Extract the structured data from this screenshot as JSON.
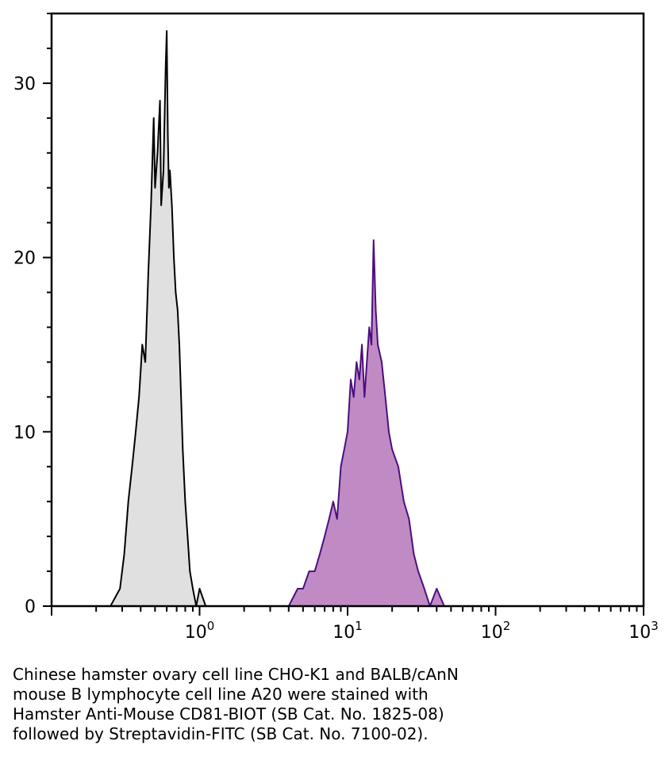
{
  "chart_data": {
    "type": "area",
    "x_scale": "log",
    "xlim": [
      0.1,
      1000
    ],
    "ylim": [
      0,
      34
    ],
    "grid": false,
    "y_ticks": [
      0,
      10,
      20,
      30
    ],
    "x_ticks": [
      {
        "value": 1,
        "base": "10",
        "exp": "0"
      },
      {
        "value": 10,
        "base": "10",
        "exp": "1"
      },
      {
        "value": 100,
        "base": "10",
        "exp": "2"
      },
      {
        "value": 1000,
        "base": "10",
        "exp": "3"
      }
    ],
    "series": [
      {
        "fill": "#e0e0e0",
        "stroke": "#000000",
        "x": [
          0.18,
          0.25,
          0.29,
          0.31,
          0.33,
          0.35,
          0.37,
          0.39,
          0.41,
          0.43,
          0.45,
          0.47,
          0.49,
          0.5,
          0.52,
          0.54,
          0.55,
          0.57,
          0.59,
          0.6,
          0.61,
          0.62,
          0.63,
          0.65,
          0.67,
          0.69,
          0.71,
          0.73,
          0.75,
          0.77,
          0.8,
          0.83,
          0.86,
          0.9,
          0.95,
          1.0,
          1.1,
          1.2,
          1.5
        ],
        "y": [
          0,
          0,
          1,
          3,
          6,
          8,
          10,
          12,
          15,
          14,
          19,
          23,
          28,
          24,
          26,
          29,
          23,
          25,
          31,
          33,
          27,
          24,
          25,
          23,
          20,
          18,
          17,
          15,
          12,
          9,
          6,
          4,
          2,
          1,
          0,
          1,
          0,
          0,
          0
        ]
      },
      {
        "fill": "#c08bc4",
        "stroke": "#4b0f7e",
        "x": [
          0.18,
          0.5,
          1.0,
          2.0,
          3.0,
          4.0,
          4.6,
          5.0,
          5.5,
          6.0,
          6.5,
          7.0,
          7.5,
          8.0,
          8.5,
          9.0,
          9.5,
          10.0,
          10.5,
          11.0,
          11.5,
          12.0,
          12.5,
          13.0,
          13.5,
          14.0,
          14.5,
          15.0,
          15.5,
          16.0,
          17.0,
          18.0,
          19.0,
          20.0,
          22.0,
          24.0,
          26.0,
          28.0,
          30.0,
          33.0,
          36.0,
          40.0,
          45.0
        ],
        "y": [
          0,
          0,
          0,
          0,
          0,
          0,
          1,
          1,
          2,
          2,
          3,
          4,
          5,
          6,
          5,
          8,
          9,
          10,
          13,
          12,
          14,
          13,
          15,
          12,
          14,
          16,
          15,
          21,
          17,
          15,
          14,
          12,
          10,
          9,
          8,
          6,
          5,
          3,
          2,
          1,
          0,
          1,
          0
        ]
      }
    ]
  },
  "caption": {
    "lines": [
      "Chinese hamster ovary cell line CHO-K1 and BALB/cAnN",
      "mouse B lymphocyte cell line A20 were stained with",
      "Hamster Anti-Mouse CD81-BIOT (SB Cat. No. 1825-08)",
      "followed by Streptavidin-FITC (SB Cat. No. 7100-02)."
    ]
  }
}
